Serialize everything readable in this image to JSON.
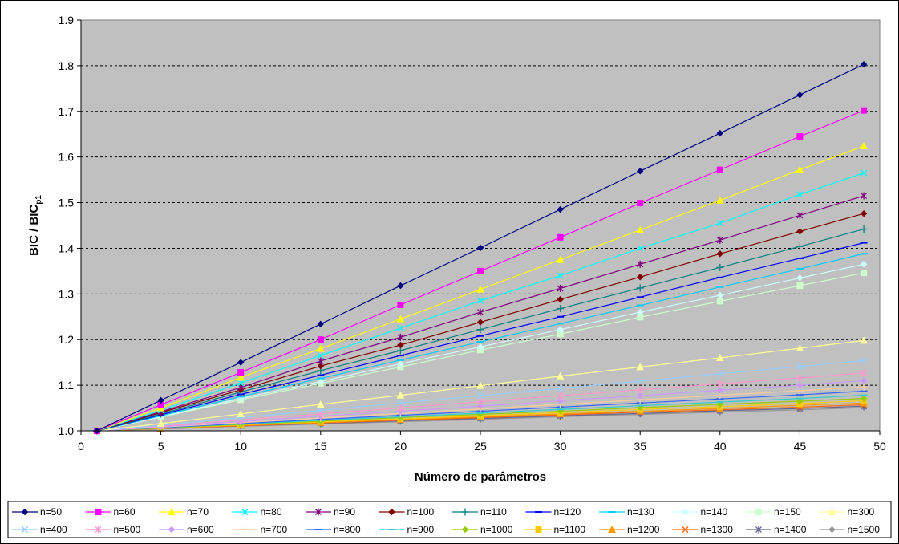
{
  "chart_data": {
    "type": "line",
    "xlabel": "Número de parâmetros",
    "ylabel": "BIC / BIC",
    "ylabel_sub": "p1",
    "xlim": [
      0,
      50
    ],
    "ylim": [
      1.0,
      1.9
    ],
    "x_ticks": [
      "0",
      "5",
      "10",
      "15",
      "20",
      "25",
      "30",
      "35",
      "40",
      "45",
      "50"
    ],
    "y_ticks": [
      "1.0",
      "1.1",
      "1.2",
      "1.3",
      "1.4",
      "1.5",
      "1.6",
      "1.7",
      "1.8",
      "1.9"
    ],
    "grid": "horizontal dashed",
    "plot_background": "#c0c0c0",
    "legend_position": "bottom",
    "x": [
      1,
      5,
      10,
      15,
      20,
      25,
      30,
      35,
      40,
      45,
      49
    ],
    "series": [
      {
        "name": "n=50",
        "color": "#000080",
        "marker": "diamond",
        "values": [
          1.0,
          1.067,
          1.15,
          1.234,
          1.318,
          1.401,
          1.485,
          1.569,
          1.652,
          1.736,
          1.803
        ]
      },
      {
        "name": "n=60",
        "color": "#ff00ff",
        "marker": "square",
        "values": [
          1.0,
          1.057,
          1.128,
          1.2,
          1.276,
          1.35,
          1.424,
          1.499,
          1.572,
          1.645,
          1.702
        ]
      },
      {
        "name": "n=70",
        "color": "#ffff00",
        "marker": "triangle",
        "values": [
          1.0,
          1.05,
          1.117,
          1.18,
          1.245,
          1.31,
          1.375,
          1.44,
          1.505,
          1.572,
          1.624
        ]
      },
      {
        "name": "n=80",
        "color": "#00ffff",
        "marker": "x",
        "values": [
          1.0,
          1.045,
          1.105,
          1.165,
          1.225,
          1.285,
          1.34,
          1.4,
          1.455,
          1.518,
          1.565
        ]
      },
      {
        "name": "n=90",
        "color": "#800080",
        "marker": "star",
        "values": [
          1.0,
          1.042,
          1.095,
          1.153,
          1.205,
          1.26,
          1.312,
          1.365,
          1.418,
          1.472,
          1.515
        ]
      },
      {
        "name": "n=100",
        "color": "#800000",
        "marker": "diamond",
        "values": [
          1.0,
          1.04,
          1.09,
          1.142,
          1.188,
          1.238,
          1.288,
          1.337,
          1.388,
          1.437,
          1.476
        ]
      },
      {
        "name": "n=110",
        "color": "#008080",
        "marker": "plus",
        "values": [
          1.0,
          1.037,
          1.085,
          1.132,
          1.176,
          1.222,
          1.268,
          1.313,
          1.358,
          1.404,
          1.442
        ]
      },
      {
        "name": "n=120",
        "color": "#0000ff",
        "marker": "dash",
        "values": [
          1.0,
          1.035,
          1.08,
          1.122,
          1.165,
          1.208,
          1.25,
          1.293,
          1.336,
          1.378,
          1.412
        ]
      },
      {
        "name": "n=130",
        "color": "#00ccff",
        "marker": "dash",
        "values": [
          1.0,
          1.033,
          1.075,
          1.115,
          1.155,
          1.195,
          1.235,
          1.275,
          1.315,
          1.355,
          1.388
        ]
      },
      {
        "name": "n=140",
        "color": "#ccffff",
        "marker": "diamond",
        "values": [
          1.0,
          1.031,
          1.071,
          1.108,
          1.147,
          1.184,
          1.222,
          1.26,
          1.297,
          1.335,
          1.365
        ]
      },
      {
        "name": "n=150",
        "color": "#ccffcc",
        "marker": "square",
        "values": [
          1.0,
          1.03,
          1.068,
          1.104,
          1.14,
          1.177,
          1.212,
          1.249,
          1.284,
          1.318,
          1.346
        ]
      },
      {
        "name": "n=300",
        "color": "#ffff99",
        "marker": "triangle",
        "values": [
          1.0,
          1.016,
          1.037,
          1.058,
          1.078,
          1.099,
          1.12,
          1.14,
          1.16,
          1.181,
          1.198
        ]
      },
      {
        "name": "n=400",
        "color": "#99ccff",
        "marker": "x",
        "values": [
          1.0,
          1.012,
          1.029,
          1.045,
          1.061,
          1.077,
          1.093,
          1.109,
          1.125,
          1.141,
          1.154
        ]
      },
      {
        "name": "n=500",
        "color": "#ff99cc",
        "marker": "star",
        "values": [
          1.0,
          1.01,
          1.024,
          1.037,
          1.05,
          1.064,
          1.077,
          1.09,
          1.103,
          1.116,
          1.127
        ]
      },
      {
        "name": "n=600",
        "color": "#cc99ff",
        "marker": "diamond",
        "values": [
          1.0,
          1.009,
          1.02,
          1.032,
          1.043,
          1.054,
          1.066,
          1.077,
          1.089,
          1.1,
          1.11
        ]
      },
      {
        "name": "n=700",
        "color": "#ffcc99",
        "marker": "plus",
        "values": [
          1.0,
          1.008,
          1.018,
          1.028,
          1.038,
          1.048,
          1.058,
          1.068,
          1.078,
          1.088,
          1.096
        ]
      },
      {
        "name": "n=800",
        "color": "#3366ff",
        "marker": "dash",
        "values": [
          1.0,
          1.007,
          1.016,
          1.025,
          1.034,
          1.043,
          1.052,
          1.061,
          1.07,
          1.079,
          1.087
        ]
      },
      {
        "name": "n=900",
        "color": "#33cccc",
        "marker": "dash",
        "values": [
          1.0,
          1.007,
          1.015,
          1.023,
          1.031,
          1.039,
          1.047,
          1.055,
          1.063,
          1.071,
          1.078
        ]
      },
      {
        "name": "n=1000",
        "color": "#99cc00",
        "marker": "diamond",
        "values": [
          1.0,
          1.006,
          1.014,
          1.021,
          1.029,
          1.036,
          1.043,
          1.051,
          1.058,
          1.065,
          1.071
        ]
      },
      {
        "name": "n=1100",
        "color": "#ffcc00",
        "marker": "square",
        "values": [
          1.0,
          1.006,
          1.013,
          1.02,
          1.026,
          1.033,
          1.04,
          1.047,
          1.053,
          1.06,
          1.066
        ]
      },
      {
        "name": "n=1200",
        "color": "#ff9900",
        "marker": "triangle",
        "values": [
          1.0,
          1.005,
          1.012,
          1.018,
          1.025,
          1.031,
          1.037,
          1.043,
          1.049,
          1.056,
          1.061
        ]
      },
      {
        "name": "n=1300",
        "color": "#ff6600",
        "marker": "x",
        "values": [
          1.0,
          1.005,
          1.011,
          1.017,
          1.023,
          1.029,
          1.035,
          1.041,
          1.046,
          1.052,
          1.057
        ]
      },
      {
        "name": "n=1400",
        "color": "#666699",
        "marker": "star",
        "values": [
          1.0,
          1.005,
          1.011,
          1.016,
          1.022,
          1.027,
          1.033,
          1.038,
          1.044,
          1.049,
          1.054
        ]
      },
      {
        "name": "n=1500",
        "color": "#969696",
        "marker": "diamond",
        "values": [
          1.0,
          1.004,
          1.01,
          1.015,
          1.02,
          1.025,
          1.031,
          1.036,
          1.041,
          1.046,
          1.051
        ]
      }
    ]
  }
}
